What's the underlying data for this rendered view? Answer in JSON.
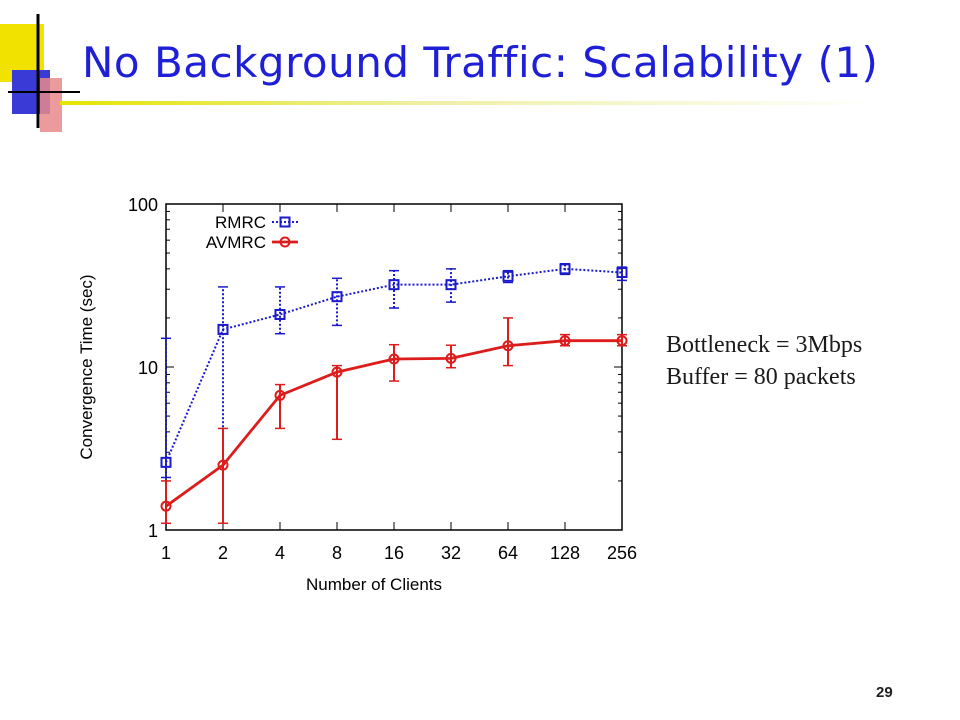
{
  "slide": {
    "title": "No Background Traffic: Scalability (1)",
    "number": "29",
    "annotations": [
      "Bottleneck = 3Mbps",
      "Buffer = 80 packets"
    ],
    "colors": {
      "title": "#1f1fd8",
      "accent_yellow": "#f2e200",
      "accent_blue": "#3a3ad6",
      "accent_red": "#e88a8a"
    }
  },
  "chart_data": {
    "type": "line",
    "xlabel": "Number of Clients",
    "ylabel": "Convergence Time (sec)",
    "x_scale": "log2",
    "y_scale": "log10",
    "x": [
      1,
      2,
      4,
      8,
      16,
      32,
      64,
      128,
      256
    ],
    "x_tick_labels": [
      "1",
      "2",
      "4",
      "8",
      "16",
      "32",
      "64",
      "128",
      "256"
    ],
    "y_tick_labels": [
      "1",
      "10",
      "100"
    ],
    "ylim": [
      1,
      100
    ],
    "legend_position": "top-left",
    "series": [
      {
        "name": "RMRC",
        "color": "#1a1acc",
        "marker": "square",
        "dashed": true,
        "values": [
          2.6,
          17,
          21,
          27,
          32,
          32,
          36,
          40,
          38
        ],
        "err_low": [
          2.1,
          1.1,
          16,
          18,
          23,
          25,
          33,
          37,
          34
        ],
        "err_high": [
          15,
          31,
          31,
          35,
          39,
          40,
          39,
          43,
          41
        ]
      },
      {
        "name": "AVMRC",
        "color": "#dd1c1c",
        "marker": "circle",
        "dashed": false,
        "values": [
          1.4,
          2.5,
          6.7,
          9.3,
          11.2,
          11.3,
          13.5,
          14.5,
          14.5
        ],
        "err_low": [
          1.1,
          1.1,
          4.2,
          3.6,
          8.2,
          9.9,
          10.2,
          13.5,
          13.5
        ],
        "err_high": [
          2.0,
          4.2,
          7.8,
          10.2,
          13.7,
          13.6,
          20,
          15.8,
          15.8
        ]
      }
    ]
  }
}
